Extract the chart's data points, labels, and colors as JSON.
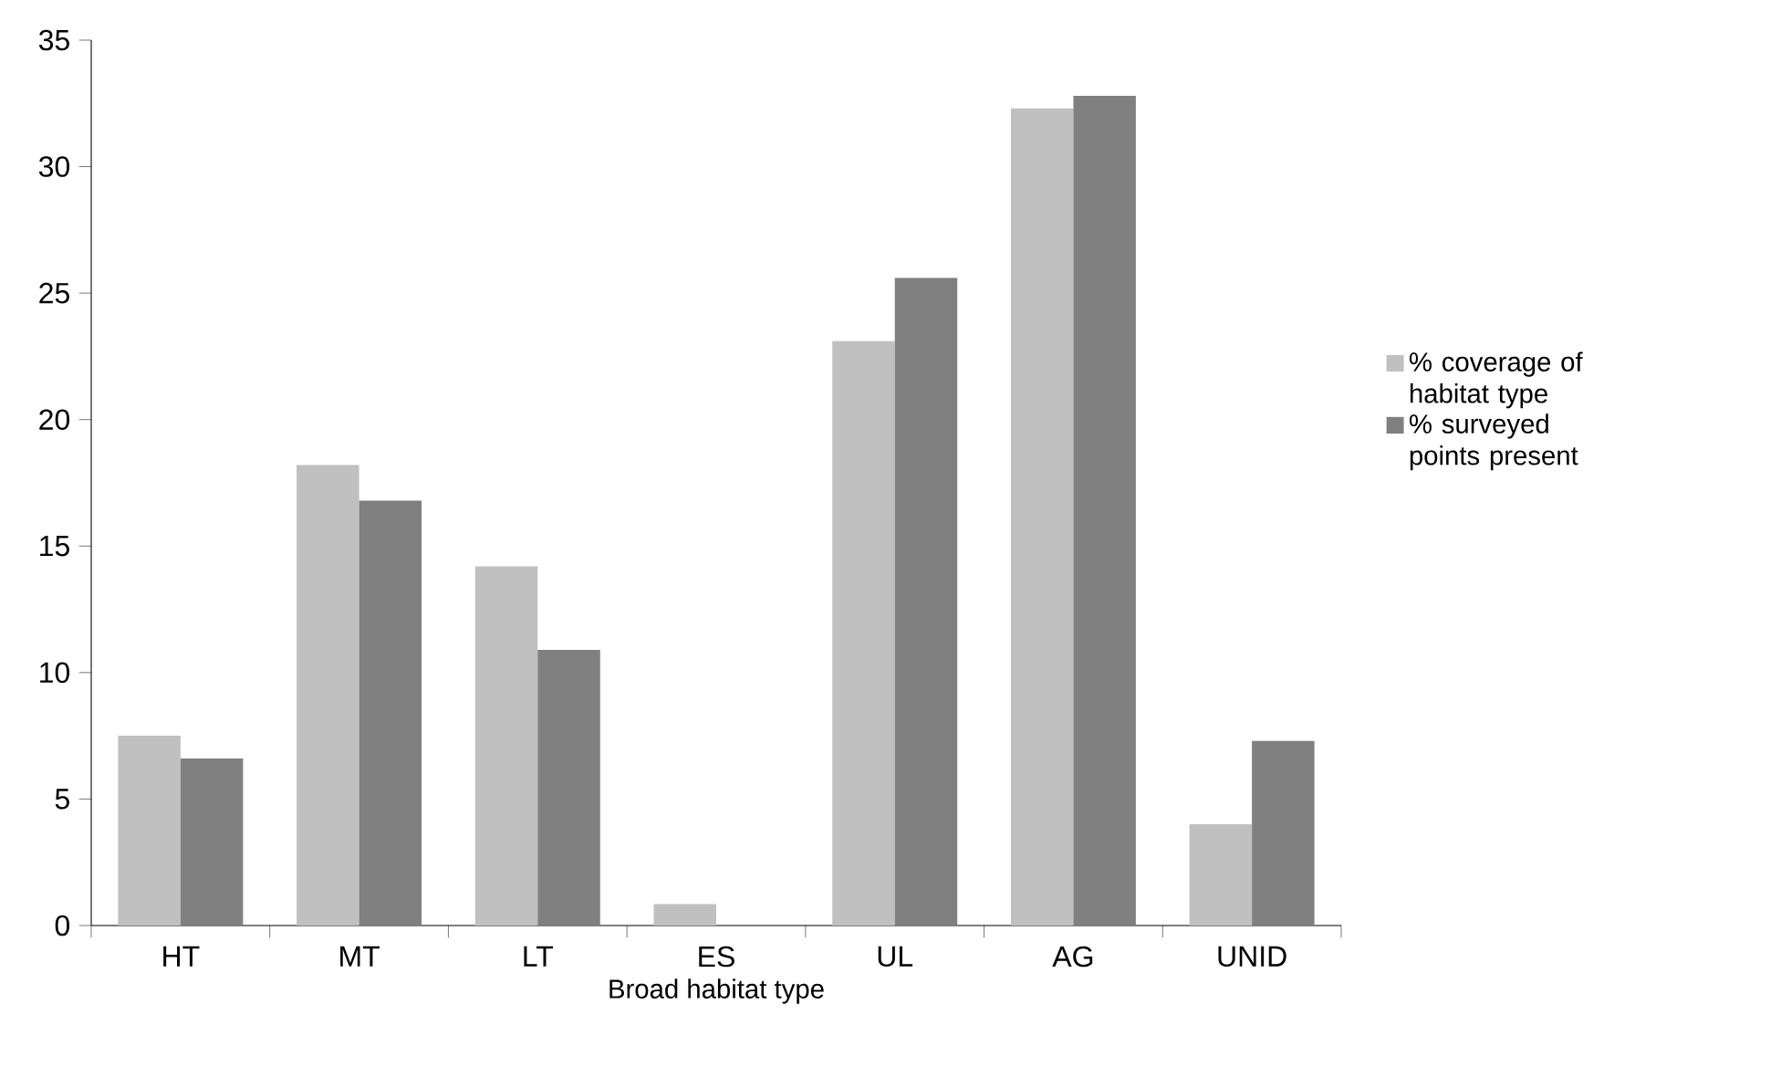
{
  "chart_data": {
    "type": "bar",
    "xlabel": "Broad habitat type",
    "categories": [
      "HT",
      "MT",
      "LT",
      "ES",
      "UL",
      "AG",
      "UNID"
    ],
    "series": [
      {
        "name": "% coverage of habitat type",
        "color": "#c0c0c0",
        "values": [
          7.5,
          18.2,
          14.2,
          0.85,
          23.1,
          32.3,
          4.0
        ]
      },
      {
        "name": "% surveyed points present",
        "color": "#808080",
        "values": [
          6.6,
          16.8,
          10.9,
          0,
          25.6,
          32.8,
          7.3
        ]
      }
    ],
    "ylim": [
      0,
      35
    ],
    "yticks": [
      0,
      5,
      10,
      15,
      20,
      25,
      30,
      35
    ],
    "legend": "right"
  }
}
